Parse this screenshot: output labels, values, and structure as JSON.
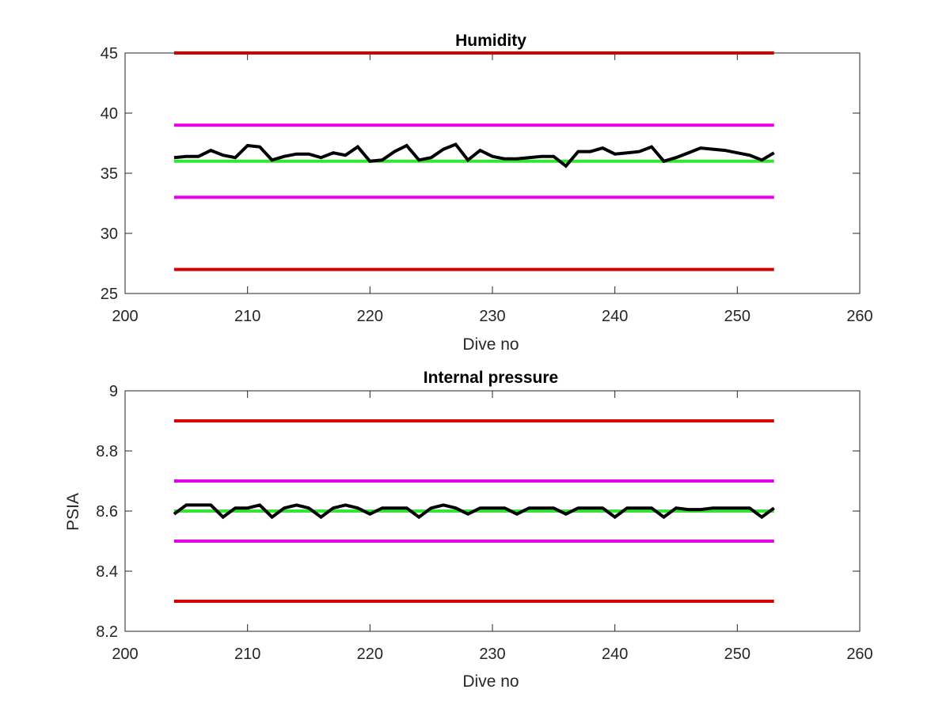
{
  "chart_data": [
    {
      "type": "line",
      "title": "Humidity",
      "xlabel": "Dive no",
      "ylabel": "",
      "xlim": [
        200,
        260
      ],
      "ylim": [
        25,
        45
      ],
      "xticks": [
        200,
        210,
        220,
        230,
        240,
        250,
        260
      ],
      "xtick_labels": [
        "200",
        "210",
        "220",
        "230",
        "240",
        "250",
        "260"
      ],
      "yticks": [
        25,
        30,
        35,
        40,
        45
      ],
      "ytick_labels": [
        "25",
        "30",
        "35",
        "40",
        "45"
      ],
      "grid": false,
      "reference_lines": [
        {
          "y": 45,
          "x_range": [
            204,
            253
          ],
          "color": "#d40000"
        },
        {
          "y": 39,
          "x_range": [
            204,
            253
          ],
          "color": "#e600e6"
        },
        {
          "y": 36,
          "x_range": [
            204,
            253
          ],
          "color": "#33e633"
        },
        {
          "y": 33,
          "x_range": [
            204,
            253
          ],
          "color": "#e600e6"
        },
        {
          "y": 27,
          "x_range": [
            204,
            253
          ],
          "color": "#d40000"
        }
      ],
      "series": [
        {
          "color": "#000000",
          "x": [
            204,
            205,
            206,
            207,
            208,
            209,
            210,
            211,
            212,
            213,
            214,
            215,
            216,
            217,
            218,
            219,
            220,
            221,
            222,
            223,
            224,
            225,
            226,
            227,
            228,
            229,
            230,
            231,
            232,
            233,
            234,
            235,
            236,
            237,
            238,
            239,
            240,
            241,
            242,
            243,
            244,
            245,
            246,
            247,
            248,
            249,
            250,
            251,
            252,
            253
          ],
          "y": [
            36.3,
            36.4,
            36.4,
            36.9,
            36.5,
            36.3,
            37.3,
            37.2,
            36.1,
            36.4,
            36.6,
            36.6,
            36.3,
            36.7,
            36.5,
            37.2,
            36.0,
            36.1,
            36.8,
            37.3,
            36.1,
            36.3,
            37.0,
            37.4,
            36.1,
            36.9,
            36.4,
            36.2,
            36.2,
            36.3,
            36.4,
            36.4,
            35.6,
            36.8,
            36.8,
            37.1,
            36.6,
            36.7,
            36.8,
            37.2,
            36.0,
            36.3,
            36.7,
            37.1,
            37.0,
            36.9,
            36.7,
            36.5,
            36.1,
            36.7
          ]
        }
      ]
    },
    {
      "type": "line",
      "title": "Internal pressure",
      "xlabel": "Dive no",
      "ylabel": "PSIA",
      "xlim": [
        200,
        260
      ],
      "ylim": [
        8.2,
        9
      ],
      "xticks": [
        200,
        210,
        220,
        230,
        240,
        250,
        260
      ],
      "xtick_labels": [
        "200",
        "210",
        "220",
        "230",
        "240",
        "250",
        "260"
      ],
      "yticks": [
        8.2,
        8.4,
        8.6,
        8.8,
        9
      ],
      "ytick_labels": [
        "8.2",
        "8.4",
        "8.6",
        "8.8",
        "9"
      ],
      "grid": false,
      "reference_lines": [
        {
          "y": 8.9,
          "x_range": [
            204,
            253
          ],
          "color": "#d40000"
        },
        {
          "y": 8.7,
          "x_range": [
            204,
            253
          ],
          "color": "#e600e6"
        },
        {
          "y": 8.6,
          "x_range": [
            204,
            253
          ],
          "color": "#33e633"
        },
        {
          "y": 8.5,
          "x_range": [
            204,
            253
          ],
          "color": "#e600e6"
        },
        {
          "y": 8.3,
          "x_range": [
            204,
            253
          ],
          "color": "#d40000"
        }
      ],
      "series": [
        {
          "color": "#000000",
          "x": [
            204,
            205,
            206,
            207,
            208,
            209,
            210,
            211,
            212,
            213,
            214,
            215,
            216,
            217,
            218,
            219,
            220,
            221,
            222,
            223,
            224,
            225,
            226,
            227,
            228,
            229,
            230,
            231,
            232,
            233,
            234,
            235,
            236,
            237,
            238,
            239,
            240,
            241,
            242,
            243,
            244,
            245,
            246,
            247,
            248,
            249,
            250,
            251,
            252,
            253
          ],
          "y": [
            8.59,
            8.62,
            8.62,
            8.62,
            8.58,
            8.61,
            8.61,
            8.62,
            8.58,
            8.61,
            8.62,
            8.61,
            8.58,
            8.61,
            8.62,
            8.61,
            8.59,
            8.61,
            8.61,
            8.61,
            8.58,
            8.61,
            8.62,
            8.61,
            8.59,
            8.61,
            8.61,
            8.61,
            8.59,
            8.61,
            8.61,
            8.61,
            8.59,
            8.61,
            8.61,
            8.61,
            8.58,
            8.61,
            8.61,
            8.61,
            8.58,
            8.61,
            8.605,
            8.605,
            8.61,
            8.61,
            8.61,
            8.61,
            8.58,
            8.61
          ]
        }
      ]
    }
  ]
}
